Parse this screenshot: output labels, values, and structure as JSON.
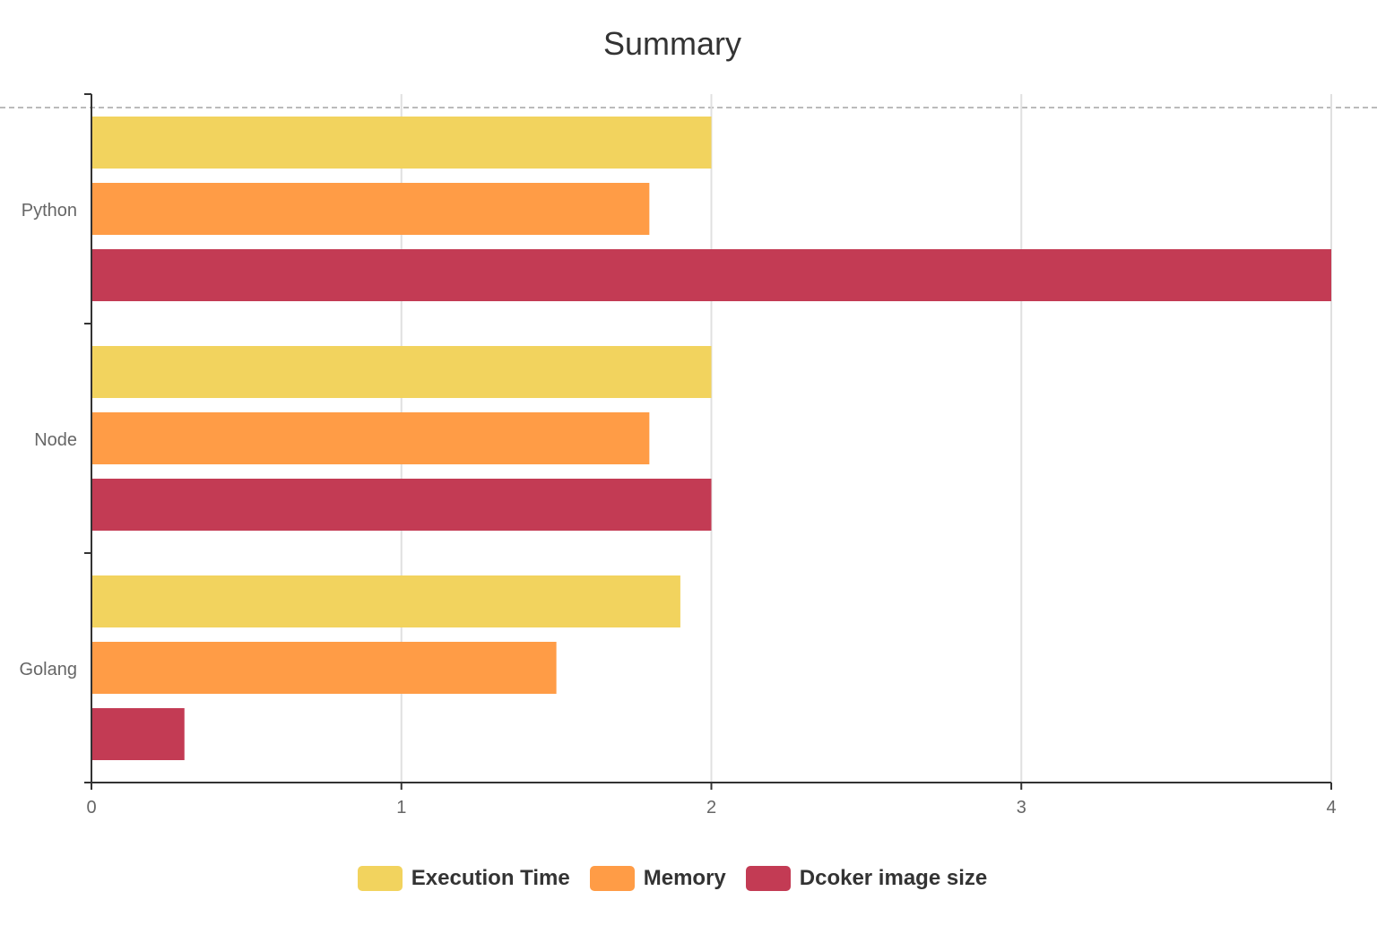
{
  "chart_data": {
    "type": "bar",
    "orientation": "horizontal",
    "title": "Summary",
    "categories": [
      "Python",
      "Node",
      "Golang"
    ],
    "series": [
      {
        "name": "Execution Time",
        "color": "#f2d35e",
        "values": [
          2.0,
          2.0,
          1.9
        ]
      },
      {
        "name": "Memory",
        "color": "#ff9c46",
        "values": [
          1.8,
          1.8,
          1.5
        ]
      },
      {
        "name": "Dcoker image size",
        "color": "#c33b54",
        "values": [
          4.0,
          2.0,
          0.3
        ]
      }
    ],
    "xlim": [
      0,
      4
    ],
    "xticks": [
      0,
      1,
      2,
      3,
      4
    ],
    "grid": true,
    "legend_position": "bottom"
  }
}
